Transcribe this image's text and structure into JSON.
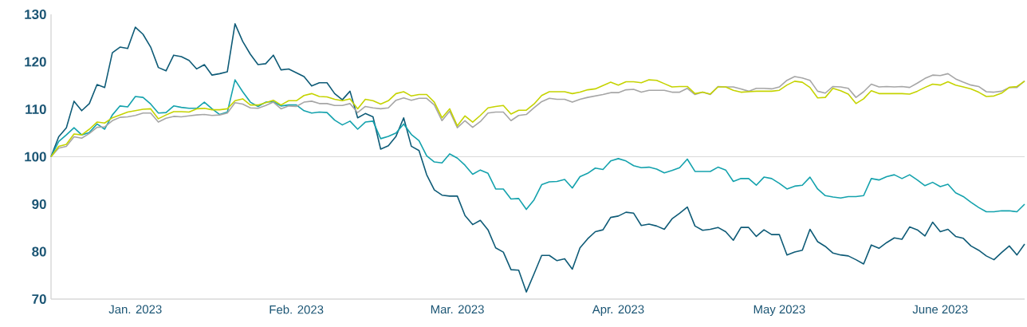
{
  "chart_data": {
    "type": "line",
    "categories": [
      null,
      null,
      null,
      null,
      null,
      null,
      null,
      null,
      null,
      null,
      null,
      "Jan. 2023",
      null,
      null,
      null,
      null,
      null,
      null,
      null,
      null,
      null,
      null,
      null,
      null,
      null,
      null,
      null,
      null,
      null,
      null,
      null,
      null,
      "Feb. 2023",
      null,
      null,
      null,
      null,
      null,
      null,
      null,
      null,
      null,
      null,
      null,
      null,
      null,
      null,
      null,
      null,
      null,
      null,
      null,
      null,
      "Mar. 2023",
      null,
      null,
      null,
      null,
      null,
      null,
      null,
      null,
      null,
      null,
      null,
      null,
      null,
      null,
      null,
      null,
      null,
      null,
      null,
      null,
      "Apr. 2023",
      null,
      null,
      null,
      null,
      null,
      null,
      null,
      null,
      null,
      null,
      null,
      null,
      null,
      null,
      null,
      null,
      null,
      null,
      null,
      null,
      "May 2023",
      null,
      null,
      null,
      null,
      null,
      null,
      null,
      null,
      null,
      null,
      null,
      null,
      null,
      null,
      null,
      null,
      null,
      null,
      null,
      null,
      "June 2023",
      null,
      null,
      null,
      null,
      null,
      null,
      null,
      null,
      null,
      null,
      null
    ],
    "series": [
      {
        "color": "#0e5b77",
        "values": [
          100,
          104.2,
          106.1,
          111.7,
          109.7,
          111.2,
          115.2,
          114.6,
          121.9,
          123.1,
          122.8,
          127.3,
          125.8,
          123.1,
          118.8,
          118.1,
          121.4,
          121.1,
          120.3,
          118.5,
          119.4,
          117.2,
          117.5,
          117.9,
          128.0,
          124.3,
          121.6,
          119.4,
          119.6,
          121.4,
          118.3,
          118.5,
          117.7,
          116.9,
          114.9,
          115.6,
          115.6,
          113.3,
          112.0,
          113.8,
          108.2,
          109.1,
          108.4,
          101.6,
          102.3,
          104.3,
          108.2,
          102.2,
          101.3,
          96.2,
          93.0,
          91.9,
          91.7,
          91.7,
          87.6,
          85.7,
          86.6,
          84.6,
          80.8,
          79.9,
          76.2,
          76.1,
          71.5,
          75.3,
          79.2,
          79.2,
          78.1,
          78.5,
          76.3,
          80.8,
          82.7,
          84.2,
          84.6,
          87.2,
          87.5,
          88.3,
          88.1,
          85.5,
          85.8,
          85.4,
          84.7,
          86.9,
          88.1,
          89.4,
          85.4,
          84.5,
          84.7,
          85.1,
          84.2,
          82.4,
          85.1,
          85.1,
          83.2,
          84.6,
          83.6,
          83.6,
          79.3,
          79.9,
          80.3,
          84.7,
          82.1,
          81.1,
          79.7,
          79.3,
          79.1,
          78.3,
          77.4,
          81.4,
          80.7,
          81.9,
          82.9,
          82.6,
          85.2,
          84.6,
          83.3,
          86.2,
          84.2,
          84.7,
          83.2,
          82.8,
          81.2,
          80.3,
          79.1,
          78.3,
          79.8,
          81.2,
          79.3,
          81.6
        ]
      },
      {
        "color": "#14a2ad",
        "values": [
          100,
          103.2,
          104.6,
          106.1,
          104.6,
          105.1,
          106.9,
          105.8,
          108.8,
          110.7,
          110.5,
          112.7,
          112.5,
          111.1,
          109.2,
          109.3,
          110.7,
          110.4,
          110.2,
          110.2,
          111.5,
          110.1,
          108.9,
          109.4,
          116.2,
          113.7,
          111.5,
          110.6,
          111.5,
          111.6,
          110.7,
          110.9,
          110.9,
          109.7,
          109.2,
          109.4,
          109.3,
          107.7,
          106.7,
          107.5,
          105.8,
          107.3,
          107.5,
          103.8,
          104.3,
          105.0,
          106.9,
          104.7,
          103.4,
          100.2,
          98.9,
          98.7,
          100.6,
          99.7,
          98.2,
          96.3,
          97.2,
          96.5,
          93.2,
          93.2,
          91.1,
          91.2,
          88.9,
          90.9,
          94.1,
          94.7,
          94.8,
          95.2,
          93.4,
          95.8,
          96.5,
          97.6,
          97.3,
          99.1,
          99.6,
          99.1,
          98.1,
          97.7,
          97.8,
          97.4,
          96.6,
          97.1,
          97.7,
          99.5,
          96.9,
          96.9,
          96.9,
          97.8,
          97.2,
          94.8,
          95.4,
          95.4,
          94.0,
          95.7,
          95.4,
          94.4,
          93.2,
          93.8,
          94.0,
          95.7,
          93.2,
          91.8,
          91.5,
          91.3,
          91.6,
          91.6,
          91.8,
          95.4,
          95.1,
          95.8,
          96.2,
          95.4,
          96.2,
          95.1,
          93.9,
          94.6,
          93.7,
          94.2,
          92.4,
          91.6,
          90.4,
          89.3,
          88.4,
          88.4,
          88.6,
          88.6,
          88.4,
          90.0
        ]
      },
      {
        "color": "#a6a6a6",
        "values": [
          100,
          101.8,
          102.2,
          104.2,
          103.9,
          104.9,
          106.2,
          106.3,
          107.6,
          108.3,
          108.4,
          108.7,
          109.2,
          109.2,
          107.3,
          108.1,
          108.5,
          108.4,
          108.6,
          108.8,
          108.9,
          108.7,
          108.8,
          109.2,
          111.4,
          111.1,
          110.3,
          110.2,
          110.8,
          111.5,
          110.1,
          110.7,
          110.6,
          111.5,
          111.7,
          111.2,
          111.2,
          110.8,
          110.8,
          111.2,
          109.3,
          110.6,
          110.3,
          110.1,
          110.3,
          111.9,
          112.4,
          111.9,
          112.3,
          112.3,
          110.9,
          107.6,
          109.6,
          106.1,
          107.6,
          106.2,
          107.4,
          109.2,
          109.4,
          109.4,
          107.6,
          108.7,
          108.9,
          110.3,
          111.6,
          112.3,
          112.1,
          112.1,
          111.5,
          112.1,
          112.5,
          112.8,
          113.1,
          113.5,
          113.5,
          114.1,
          114.2,
          113.6,
          114.0,
          114.0,
          114.0,
          113.6,
          113.6,
          114.4,
          113.1,
          113.6,
          113.1,
          114.8,
          114.7,
          114.7,
          114.3,
          113.8,
          114.4,
          114.4,
          114.3,
          114.7,
          116.1,
          116.9,
          116.6,
          116.1,
          113.8,
          113.4,
          114.8,
          114.7,
          114.4,
          112.5,
          113.7,
          115.3,
          114.7,
          114.8,
          114.7,
          114.8,
          114.6,
          115.5,
          116.5,
          117.2,
          117.1,
          117.5,
          116.4,
          115.7,
          115.1,
          114.8,
          113.7,
          113.6,
          113.8,
          114.6,
          114.6,
          116.0
        ]
      },
      {
        "color": "#c5d300",
        "values": [
          100,
          102.2,
          102.6,
          104.8,
          104.6,
          105.8,
          107.3,
          107.1,
          108.2,
          108.8,
          109.4,
          109.7,
          110.0,
          110.1,
          108.0,
          108.8,
          109.5,
          109.5,
          109.4,
          110.1,
          110.2,
          109.9,
          109.9,
          110.1,
          111.8,
          112.2,
          110.9,
          110.9,
          111.4,
          111.9,
          110.9,
          111.8,
          111.8,
          112.9,
          113.3,
          112.7,
          112.6,
          112.1,
          111.8,
          112.2,
          110.1,
          112.1,
          111.8,
          111.1,
          111.8,
          113.3,
          113.7,
          112.8,
          113.1,
          113.1,
          111.5,
          108.2,
          110.1,
          106.5,
          108.6,
          107.3,
          108.7,
          110.3,
          110.6,
          110.8,
          109.0,
          109.8,
          109.8,
          111.1,
          112.9,
          113.7,
          113.7,
          113.7,
          113.3,
          113.6,
          114.1,
          114.3,
          115.0,
          115.7,
          115.1,
          115.8,
          115.8,
          115.6,
          116.2,
          116.1,
          115.4,
          114.7,
          114.8,
          114.8,
          113.3,
          113.6,
          113.2,
          114.7,
          114.7,
          114.0,
          113.6,
          113.7,
          113.8,
          113.8,
          113.8,
          114.0,
          115.1,
          115.9,
          115.7,
          114.6,
          112.4,
          112.5,
          114.4,
          113.9,
          113.2,
          111.2,
          112.2,
          113.9,
          113.3,
          113.3,
          113.3,
          113.3,
          113.2,
          113.8,
          114.6,
          115.3,
          115.1,
          115.8,
          115.1,
          114.7,
          114.3,
          113.6,
          112.7,
          112.8,
          113.4,
          114.6,
          114.8,
          115.9
        ]
      }
    ],
    "ylim": [
      70,
      130
    ],
    "yticks": [
      70,
      80,
      90,
      100,
      110,
      120,
      130
    ],
    "ref_lines": [
      {
        "axis": "y",
        "value": 100,
        "color": "#d9d9d9"
      }
    ],
    "line_style": "solid"
  }
}
